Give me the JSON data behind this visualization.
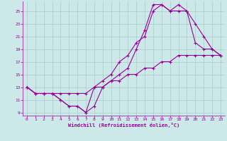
{
  "xlabel": "Windchill (Refroidissement éolien,°C)",
  "bg_color": "#cce8e8",
  "line_color": "#990099",
  "grid_color": "#aacccc",
  "xlim": [
    -0.5,
    23.5
  ],
  "ylim": [
    8.5,
    26.5
  ],
  "xticks": [
    0,
    1,
    2,
    3,
    4,
    5,
    6,
    7,
    8,
    9,
    10,
    11,
    12,
    13,
    14,
    15,
    16,
    17,
    18,
    19,
    20,
    21,
    22,
    23
  ],
  "yticks": [
    9,
    11,
    13,
    15,
    17,
    19,
    21,
    23,
    25
  ],
  "line1_x": [
    0,
    1,
    2,
    3,
    4,
    5,
    6,
    7,
    8,
    9,
    10,
    11,
    12,
    13,
    14,
    15,
    16,
    17,
    18,
    19,
    20,
    21,
    22,
    23
  ],
  "line1_y": [
    13,
    12,
    12,
    12,
    11,
    10,
    10,
    9,
    10,
    13,
    14,
    15,
    16,
    19,
    22,
    26,
    26,
    25,
    26,
    25,
    20,
    19,
    19,
    18
  ],
  "line2_x": [
    0,
    1,
    2,
    3,
    4,
    5,
    6,
    7,
    8,
    9,
    10,
    11,
    12,
    13,
    14,
    15,
    16,
    17,
    18,
    19,
    20,
    21,
    22,
    23
  ],
  "line2_y": [
    13,
    12,
    12,
    12,
    11,
    10,
    10,
    9,
    13,
    14,
    15,
    17,
    18,
    20,
    21,
    25,
    26,
    25,
    25,
    25,
    23,
    21,
    19,
    18
  ],
  "line3_x": [
    0,
    1,
    2,
    3,
    4,
    5,
    6,
    7,
    8,
    9,
    10,
    11,
    12,
    13,
    14,
    15,
    16,
    17,
    18,
    19,
    20,
    21,
    22,
    23
  ],
  "line3_y": [
    13,
    12,
    12,
    12,
    12,
    12,
    12,
    12,
    13,
    13,
    14,
    14,
    15,
    15,
    16,
    16,
    17,
    17,
    18,
    18,
    18,
    18,
    18,
    18
  ]
}
